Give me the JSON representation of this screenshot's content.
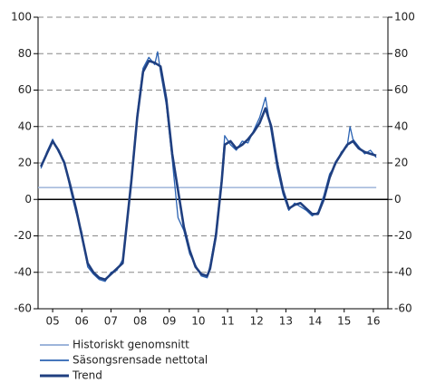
{
  "chart_data": {
    "type": "line",
    "x": [
      2005.1,
      2005.3,
      2005.5,
      2005.7,
      2005.9,
      2006.1,
      2006.3,
      2006.5,
      2006.7,
      2006.9,
      2007.1,
      2007.3,
      2007.5,
      2007.7,
      2007.9,
      2008.0,
      2008.2,
      2008.4,
      2008.6,
      2008.8,
      2009.0,
      2009.1,
      2009.2,
      2009.4,
      2009.6,
      2009.8,
      2010.0,
      2010.2,
      2010.4,
      2010.6,
      2010.8,
      2010.9,
      2011.1,
      2011.3,
      2011.4,
      2011.6,
      2011.8,
      2012.0,
      2012.2,
      2012.4,
      2012.6,
      2012.8,
      2013.0,
      2013.2,
      2013.4,
      2013.6,
      2013.8,
      2014.0,
      2014.2,
      2014.4,
      2014.6,
      2014.8,
      2015.0,
      2015.2,
      2015.4,
      2015.6,
      2015.7,
      2015.8,
      2016.0,
      2016.2,
      2016.4,
      2016.6
    ],
    "series": [
      {
        "name": "Säsongsrensade nettotal",
        "color": "#2b63b3",
        "values": [
          17,
          26,
          33,
          26,
          21,
          6,
          -7,
          -18,
          -37,
          -41,
          -44,
          -45,
          -40,
          -39,
          -33,
          -22,
          12,
          47,
          72,
          78,
          74,
          81,
          70,
          52,
          22,
          -10,
          -17,
          -30,
          -36,
          -42,
          -43,
          -36,
          -18,
          12,
          35,
          30,
          27,
          32,
          31,
          38,
          45,
          56,
          37,
          17,
          3,
          -6,
          -2,
          -4,
          -6,
          -9,
          -7,
          2,
          14,
          19,
          26,
          29,
          40,
          33,
          29,
          25,
          27,
          23
        ]
      },
      {
        "name": "Trend",
        "color": "#1f3f80",
        "values": [
          18,
          25,
          32,
          27,
          20,
          8,
          -5,
          -20,
          -35,
          -40,
          -43,
          -44,
          -41,
          -38,
          -35,
          -20,
          10,
          45,
          70,
          76,
          75,
          74,
          73,
          55,
          25,
          5,
          -15,
          -28,
          -37,
          -41,
          -42,
          -38,
          -20,
          10,
          30,
          32,
          28,
          30,
          33,
          37,
          42,
          50,
          40,
          20,
          5,
          -5,
          -3,
          -2,
          -5,
          -8,
          -8,
          0,
          12,
          20,
          25,
          30,
          31,
          32,
          28,
          26,
          25,
          24
        ]
      }
    ],
    "reference_line": {
      "name": "Historiskt genomsnitt",
      "color": "#9db5da",
      "value": 6.5,
      "x": [
        2005,
        2016.6
      ]
    },
    "xlim": [
      2005,
      2017
    ],
    "xticks": [
      {
        "value": 2005.5,
        "label": "05"
      },
      {
        "value": 2006.5,
        "label": "06"
      },
      {
        "value": 2007.5,
        "label": "07"
      },
      {
        "value": 2008.5,
        "label": "08"
      },
      {
        "value": 2009.5,
        "label": "09"
      },
      {
        "value": 2010.5,
        "label": "10"
      },
      {
        "value": 2011.5,
        "label": "11"
      },
      {
        "value": 2012.5,
        "label": "12"
      },
      {
        "value": 2013.5,
        "label": "13"
      },
      {
        "value": 2014.5,
        "label": "14"
      },
      {
        "value": 2015.5,
        "label": "15"
      },
      {
        "value": 2016.5,
        "label": "16"
      }
    ],
    "ylim": [
      -60,
      100
    ],
    "yticks": [
      -60,
      -40,
      -20,
      0,
      20,
      40,
      60,
      80,
      100
    ],
    "grid": true
  }
}
